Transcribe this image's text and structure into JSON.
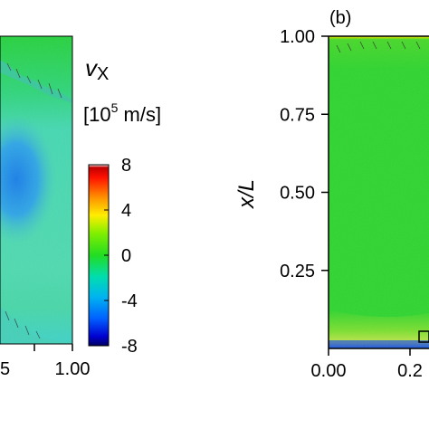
{
  "chart_data": [
    {
      "type": "heatmap",
      "panel": "a",
      "panel_label": "",
      "description_colors": {
        "background": "#2bd43a",
        "lower_region": "#4fd9a0",
        "min_blob": "#1e82e6"
      },
      "x_ticks": [
        "5",
        "1.00"
      ],
      "xlim_visible": [
        0.7,
        1.0
      ],
      "colorbar": {
        "variable": "v",
        "variable_subscript": "X",
        "units_prefix": "[10",
        "units_exponent": "5",
        "units_suffix": " m/s]",
        "ticks": [
          "8",
          "4",
          "0",
          "-4",
          "-8"
        ],
        "tick_values": [
          8,
          4,
          0,
          -4,
          -8
        ],
        "range": [
          -8,
          8
        ],
        "colors": [
          "#000080",
          "#0000ff",
          "#00aaff",
          "#00e6c0",
          "#22dd22",
          "#80ee00",
          "#ffee00",
          "#ff8800",
          "#ff0000",
          "#cc0000",
          "#ffffff"
        ]
      }
    },
    {
      "type": "heatmap",
      "panel": "b",
      "panel_label": "(b)",
      "ylabel": "x/L",
      "y_ticks": [
        "1.00",
        "0.75",
        "0.50",
        "0.25"
      ],
      "y_tick_values": [
        1.0,
        0.75,
        0.5,
        0.25
      ],
      "x_ticks": [
        "0.00",
        "0.2"
      ],
      "x_tick_values": [
        0.0,
        0.2
      ],
      "ylim": [
        0,
        1.0
      ],
      "description_colors": {
        "background": "#2fd52f",
        "top_edge": "#c8e000",
        "bottom_edge": "#a0e030"
      }
    }
  ]
}
